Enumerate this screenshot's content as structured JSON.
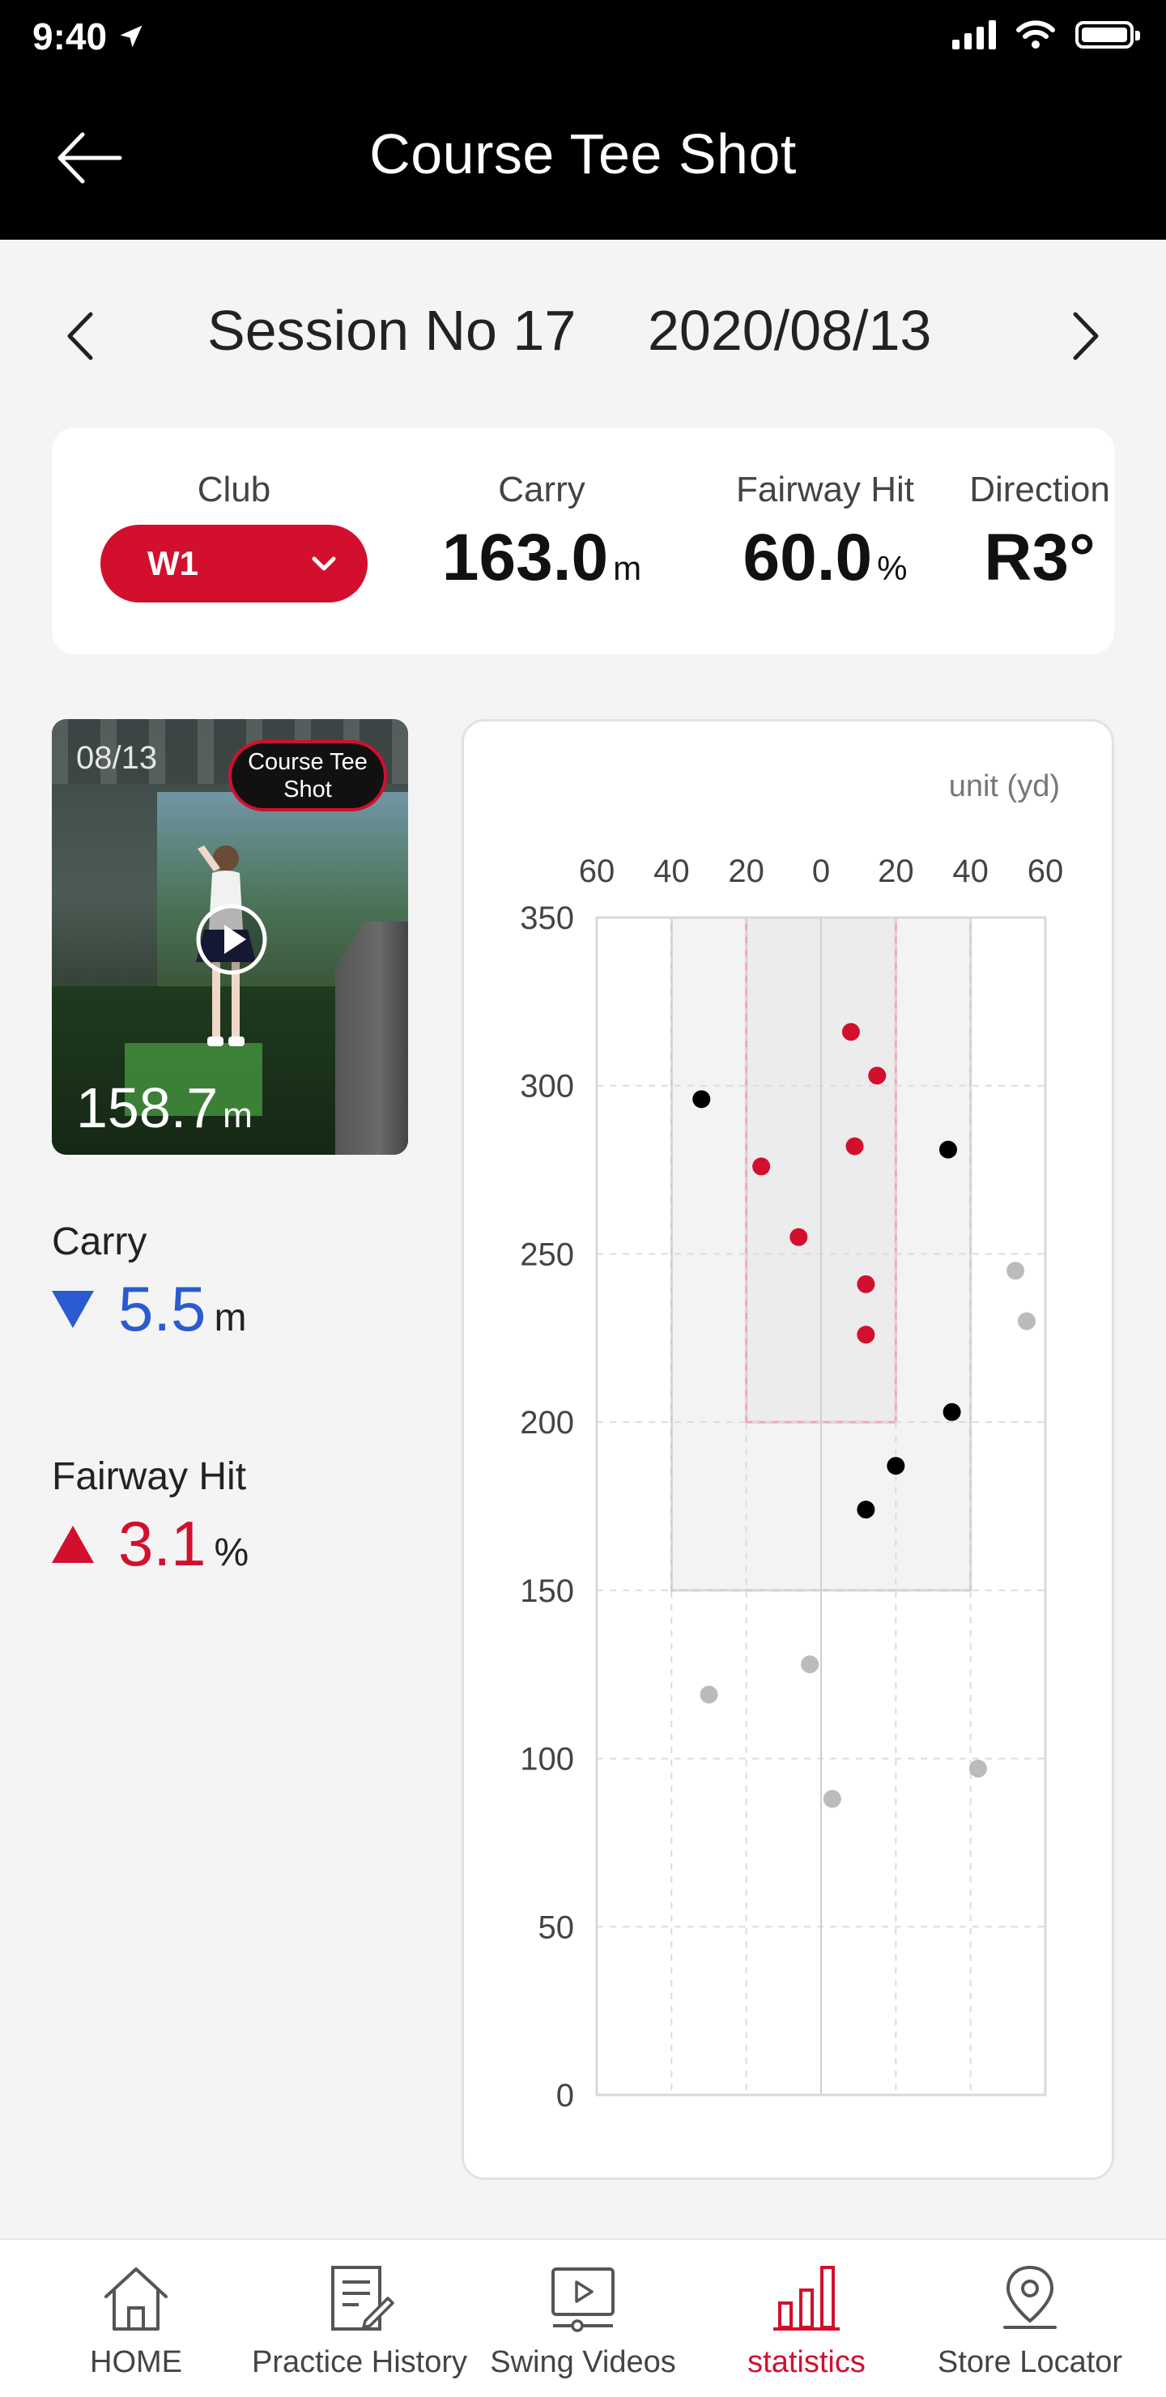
{
  "status_bar": {
    "time": "9:40"
  },
  "header": {
    "title": "Course Tee Shot"
  },
  "session": {
    "label": "Session No 17",
    "date": "2020/08/13"
  },
  "summary": {
    "club_label": "Club",
    "club_value": "W1",
    "carry_label": "Carry",
    "carry_value": "163.0",
    "carry_unit": "m",
    "fairway_label": "Fairway Hit",
    "fairway_value": "60.0",
    "fairway_unit": "%",
    "direction_label": "Direction",
    "direction_value": "R3°"
  },
  "video": {
    "date": "08/13",
    "badge": "Course Tee Shot",
    "carry_value": "158.7",
    "carry_unit": "m"
  },
  "deltas": {
    "carry_label": "Carry",
    "carry_value": "5.5",
    "carry_unit": "m",
    "carry_direction": "down",
    "fairway_label": "Fairway Hit",
    "fairway_value": "3.1",
    "fairway_unit": "%",
    "fairway_direction": "up"
  },
  "chart_data": {
    "type": "scatter",
    "unit_label": "unit (yd)",
    "x_tick_labels": [
      "60",
      "40",
      "20",
      "0",
      "20",
      "40",
      "60"
    ],
    "x_ticks": [
      -60,
      -40,
      -20,
      0,
      20,
      40,
      60
    ],
    "y_ticks": [
      350,
      300,
      250,
      200,
      150,
      100,
      50,
      0
    ],
    "xlim": [
      -60,
      60
    ],
    "ylim": [
      0,
      350
    ],
    "grid": true,
    "fairway_zone": {
      "x": [
        -40,
        40
      ],
      "y": [
        150,
        350
      ]
    },
    "target_zone": {
      "x": [
        -20,
        20
      ],
      "y": [
        200,
        350
      ]
    },
    "series": [
      {
        "color": "#d2102e",
        "points": [
          [
            8,
            316
          ],
          [
            15,
            303
          ],
          [
            9,
            282
          ],
          [
            -16,
            276
          ],
          [
            -6,
            255
          ],
          [
            12,
            241
          ],
          [
            12,
            226
          ]
        ]
      },
      {
        "color": "#000000",
        "points": [
          [
            -32,
            296
          ],
          [
            34,
            281
          ],
          [
            35,
            203
          ],
          [
            20,
            187
          ],
          [
            12,
            174
          ]
        ]
      },
      {
        "color": "#bbbbbb",
        "points": [
          [
            52,
            245
          ],
          [
            55,
            230
          ],
          [
            -30,
            119
          ],
          [
            -3,
            128
          ],
          [
            3,
            88
          ],
          [
            42,
            97
          ]
        ]
      }
    ]
  },
  "tabs": [
    {
      "label": "HOME",
      "icon": "home-icon"
    },
    {
      "label": "Practice History",
      "icon": "notepad-icon"
    },
    {
      "label": "Swing Videos",
      "icon": "video-icon"
    },
    {
      "label": "statistics",
      "icon": "bar-chart-icon",
      "active": true
    },
    {
      "label": "Store Locator",
      "icon": "location-pin-icon"
    }
  ]
}
